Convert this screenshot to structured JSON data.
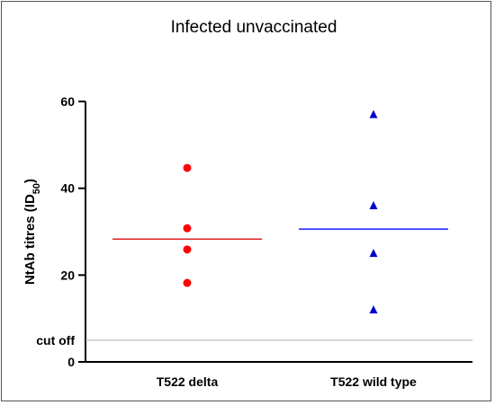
{
  "chart_data": {
    "type": "scatter",
    "title": "Infected unvaccinated",
    "ylabel": "NtAb titres (ID",
    "ylabel_sub": "50",
    "ylabel_close": ")",
    "categories": [
      "T522 delta",
      "T522 wild type"
    ],
    "ylim": [
      0,
      60
    ],
    "yticks": [
      0,
      20,
      40,
      60
    ],
    "cutoff": {
      "label": "cut off",
      "value": 5
    },
    "series": [
      {
        "category": "T522 delta",
        "marker": "circle",
        "color": "#ff0000",
        "mean_color": "#e02020",
        "values": [
          44.7,
          30.8,
          25.9,
          18.2
        ],
        "mean": 28.3
      },
      {
        "category": "T522 wild type",
        "marker": "triangle",
        "color": "#0000cc",
        "mean_color": "#1a1aff",
        "values": [
          57.0,
          36.0,
          25.0,
          12.0
        ],
        "mean": 30.6
      }
    ],
    "grid": false,
    "legend": "none"
  }
}
